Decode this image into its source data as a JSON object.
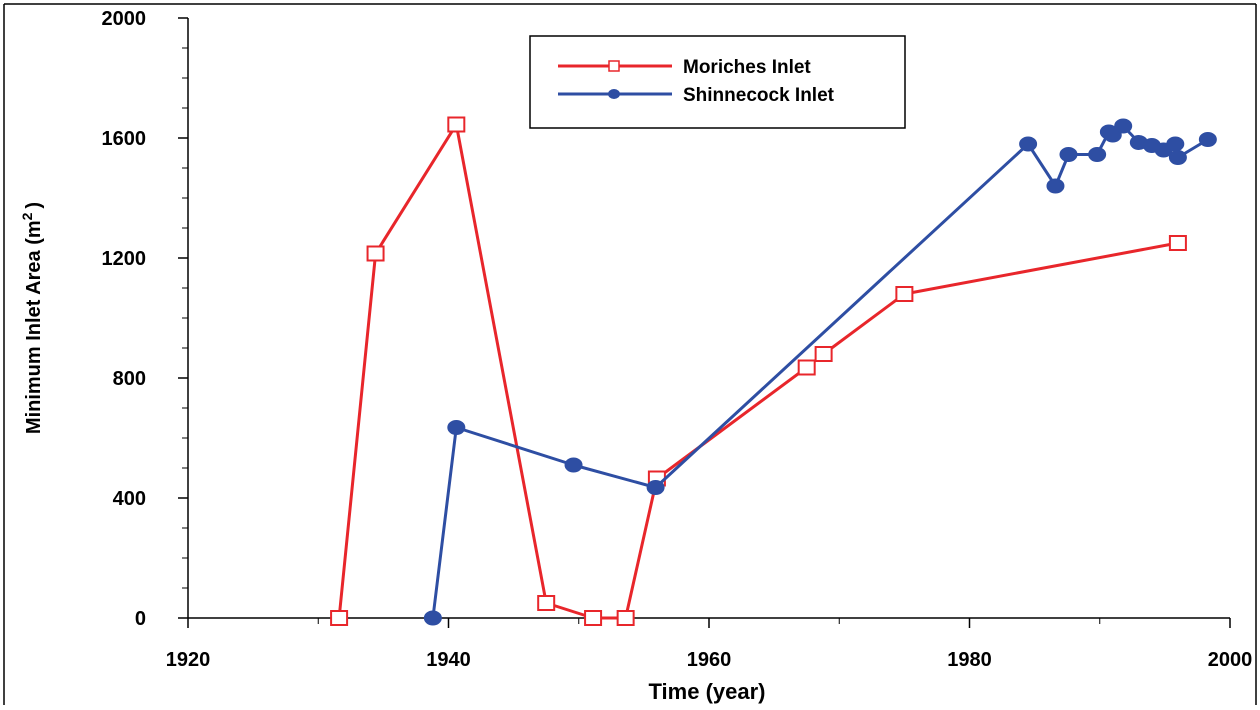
{
  "chart_data": {
    "type": "line",
    "title": "",
    "xlabel": "Time (year)",
    "ylabel": "Minimum Inlet Area (m",
    "ylabel_superscript": "2",
    "ylabel_suffix": ")",
    "xlim": [
      1920,
      2000
    ],
    "ylim": [
      0,
      2000
    ],
    "x_ticks": [
      1920,
      1940,
      1960,
      1980,
      2000
    ],
    "y_ticks": [
      0,
      400,
      800,
      1200,
      1600,
      2000
    ],
    "x_tick_labels": [
      "1920",
      "1940",
      "1960",
      "1980",
      "2000"
    ],
    "y_tick_labels": [
      "0",
      "400",
      "800",
      "1200",
      "1600",
      "2000"
    ],
    "grid": false,
    "legend_position": "top-center",
    "series": [
      {
        "name": "Moriches Inlet",
        "color": "#e8262b",
        "marker": "open-square",
        "x": [
          1931.6,
          1934.4,
          1940.6,
          1947.5,
          1951.1,
          1953.6,
          1956.0,
          1967.5,
          1968.8,
          1975.0,
          1996.0
        ],
        "y": [
          0,
          1215,
          1645,
          50,
          0,
          0,
          465,
          835,
          880,
          1080,
          1250
        ]
      },
      {
        "name": "Shinnecock Inlet",
        "color": "#2e4ea3",
        "marker": "filled-circle",
        "x": [
          1938.8,
          1940.6,
          1949.6,
          1955.9,
          1984.5,
          1986.6,
          1987.6,
          1989.8,
          1990.7,
          1991.0,
          1991.8,
          1993.0,
          1994.0,
          1994.9,
          1995.8,
          1996.0,
          1998.3
        ],
        "y": [
          0,
          635,
          510,
          435,
          1580,
          1440,
          1545,
          1545,
          1620,
          1610,
          1640,
          1585,
          1575,
          1560,
          1580,
          1535,
          1595
        ]
      }
    ]
  }
}
